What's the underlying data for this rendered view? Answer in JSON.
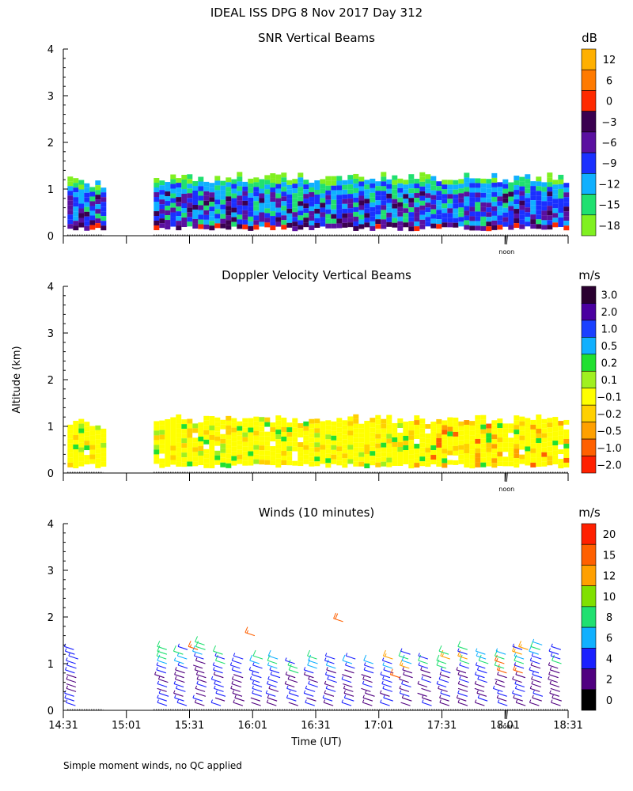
{
  "figure": {
    "title": "IDEAL ISS DPG    8 Nov 2017 Day 312",
    "footnote": "Simple moment winds, no QC applied",
    "shared_ylabel": "Altitude (km)",
    "shared_xlabel": "Time (UT)",
    "noon_label": "noon"
  },
  "chart_data": [
    {
      "type": "heatmap",
      "title": "SNR Vertical Beams",
      "ylabel": "Altitude (km)",
      "yticks": [
        "0",
        "1",
        "2",
        "3",
        "4"
      ],
      "ylim": [
        0,
        4
      ],
      "xlim": [
        "14:31",
        "18:31"
      ],
      "colorbar": {
        "unit": "dB",
        "labels": [
          "12",
          "6",
          "0",
          "−3",
          "−6",
          "−9",
          "−12",
          "−15",
          "−18"
        ],
        "colors": [
          "#ffb000",
          "#ff7a00",
          "#ff2a00",
          "#3a0050",
          "#5a10a0",
          "#1a30ff",
          "#10b0ff",
          "#20e070",
          "#80f020"
        ]
      },
      "data_gaps": [
        [
          "14:50",
          "15:14"
        ]
      ],
      "bands": [
        {
          "time_range": [
            "14:33",
            "14:50"
          ],
          "altitude_range": [
            0.2,
            1.2
          ],
          "dominant": "#10b0ff",
          "mid": "#1a30ff"
        },
        {
          "time_range": [
            "15:14",
            "18:31"
          ],
          "altitude_range": [
            0.2,
            1.3
          ],
          "dominant": "#1a30ff",
          "mid": "#5a10a0"
        }
      ]
    },
    {
      "type": "heatmap",
      "title": "Doppler Velocity Vertical Beams",
      "ylabel": "Altitude (km)",
      "yticks": [
        "0",
        "1",
        "2",
        "3",
        "4"
      ],
      "ylim": [
        0,
        4
      ],
      "xlim": [
        "14:31",
        "18:31"
      ],
      "colorbar": {
        "unit": "m/s",
        "labels": [
          "3.0",
          "2.0",
          "1.0",
          "0.5",
          "0.2",
          "0.1",
          "−0.1",
          "−0.2",
          "−0.5",
          "−1.0",
          "−2.0"
        ],
        "colors": [
          "#2a0030",
          "#4a00a0",
          "#1a40ff",
          "#10b0ff",
          "#20e030",
          "#a0f020",
          "#ffff00",
          "#ffd000",
          "#ffa000",
          "#ff6000",
          "#ff2000"
        ]
      },
      "data_gaps": [
        [
          "14:50",
          "15:14"
        ]
      ],
      "bands": [
        {
          "time_range": [
            "14:33",
            "14:50"
          ],
          "altitude_range": [
            0.2,
            1.1
          ],
          "dominant": "#ffd000"
        },
        {
          "time_range": [
            "15:14",
            "18:31"
          ],
          "altitude_range": [
            0.2,
            1.2
          ],
          "dominant": "#ffff00"
        }
      ]
    },
    {
      "type": "scatter",
      "title": "Winds (10 minutes)",
      "ylabel": "Altitude (km)",
      "xlabel": "Time (UT)",
      "yticks": [
        "0",
        "1",
        "2",
        "3",
        "4"
      ],
      "ylim": [
        0,
        4
      ],
      "xticks": [
        "14:31",
        "15:01",
        "15:31",
        "16:01",
        "16:31",
        "17:01",
        "17:31",
        "18:01",
        "18:31"
      ],
      "colorbar": {
        "unit": "m/s",
        "labels": [
          "20",
          "15",
          "12",
          "10",
          "8",
          "6",
          "4",
          "2",
          "0"
        ],
        "colors": [
          "#ff2000",
          "#ff6000",
          "#ffa000",
          "#80e000",
          "#20e070",
          "#10b0ff",
          "#1a20ff",
          "#500080",
          "#000000"
        ]
      },
      "profile_times": [
        "14:37",
        "15:20",
        "15:29",
        "15:38",
        "15:47",
        "15:56",
        "16:05",
        "16:13",
        "16:22",
        "16:31",
        "16:40",
        "16:49",
        "16:58",
        "17:07",
        "17:16",
        "17:25",
        "17:34",
        "17:43",
        "17:52",
        "18:01",
        "18:10",
        "18:18",
        "18:27"
      ],
      "profile_top_km": [
        1.3,
        1.3,
        1.3,
        1.4,
        1.2,
        1.1,
        1.1,
        1.1,
        1.0,
        1.1,
        1.1,
        1.1,
        1.0,
        1.1,
        1.2,
        1.1,
        1.2,
        1.3,
        1.2,
        1.2,
        1.3,
        1.4,
        1.3
      ],
      "isolated_barbs": [
        {
          "time": "16:02",
          "altitude_km": 1.6,
          "speed": 16
        },
        {
          "time": "16:44",
          "altitude_km": 1.9,
          "speed": 19
        },
        {
          "time": "15:35",
          "altitude_km": 1.3,
          "speed": 17
        },
        {
          "time": "17:11",
          "altitude_km": 0.7,
          "speed": 16
        },
        {
          "time": "18:12",
          "altitude_km": 1.3,
          "speed": 14
        }
      ]
    }
  ]
}
